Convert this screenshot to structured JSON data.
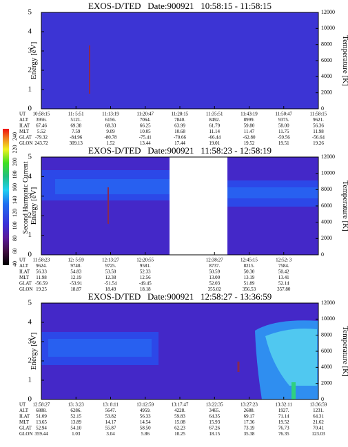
{
  "colorbar": {
    "label": "Second Harmonic Current",
    "ticks": [
      40,
      60,
      80,
      100,
      120,
      140,
      160,
      180,
      200,
      220,
      240
    ]
  },
  "panels": [
    {
      "title": "EXOS-D/TED   Date:900921   10:58:15 - 11:58:15",
      "y_label": "Energy [eV]",
      "y_ticks": [
        0,
        1,
        2,
        3,
        4,
        5
      ],
      "y2_label": "Temperature [K]",
      "y2_ticks": [
        0,
        2000,
        4000,
        6000,
        8000,
        10000,
        12000
      ],
      "ephemeris": {
        "row_labels": [
          "UT",
          "ALT",
          "ILAT",
          "MLT",
          "GLAT",
          "GLON"
        ],
        "columns": [
          [
            "10:58:15",
            "3956.",
            "67.46",
            "5.52",
            "-79.32",
            "243.72"
          ],
          [
            "11: 5:51",
            "5121.",
            "69.38",
            "7.59",
            "-84.96",
            "309.13"
          ],
          [
            "11:13:19",
            "6156.",
            "68.33",
            "9.09",
            "-80.78",
            "1.52"
          ],
          [
            "11:20:47",
            "7064.",
            "66.25",
            "10.05",
            "-75.41",
            "13.44"
          ],
          [
            "11:28:15",
            "7840.",
            "63.99",
            "10.68",
            "-70.66",
            "17.44"
          ],
          [
            "11:35:51",
            "8492.",
            "61.79",
            "11.14",
            "-66.44",
            "19.01"
          ],
          [
            "11:43:19",
            "8999.",
            "59.80",
            "11.47",
            "-62.80",
            "19.52"
          ],
          [
            "11:50:47",
            "9375.",
            "58.00",
            "11.75",
            "-59.56",
            "19.51"
          ],
          [
            "11:58:15",
            "9621.",
            "56.36",
            "11.98",
            "-56.64",
            "19.26"
          ]
        ]
      }
    },
    {
      "title": "EXOS-D/TED   Date:900921   11:58:23 - 12:58:19",
      "y_label": "Energy [eV]",
      "y_ticks": [
        0,
        1,
        2,
        3,
        4,
        5
      ],
      "y2_label": "Temperature [K]",
      "y2_ticks": [
        0,
        2000,
        4000,
        6000,
        8000,
        10000,
        12000
      ],
      "ephemeris": {
        "row_labels": [
          "UT",
          "ALT",
          "ILAT",
          "MLT",
          "GLAT",
          "GLON"
        ],
        "columns": [
          [
            "11:58:23",
            "9624.",
            "56.33",
            "11.98",
            "-56.59",
            "19.25"
          ],
          [
            "12: 5:59",
            "9740.",
            "54.83",
            "12.19",
            "-53.91",
            "18.87"
          ],
          [
            "12:13:27",
            "9725.",
            "53.50",
            "12.38",
            "-51.54",
            "18.49"
          ],
          [
            "12:20:55",
            "9581.",
            "52.33",
            "12.56",
            "-49.45",
            "18.18"
          ],
          null,
          [
            "12:38:27",
            "8737.",
            "50.59",
            "13.00",
            "52.03",
            "355.02"
          ],
          [
            "12:45:15",
            "8215.",
            "50.30",
            "13.19",
            "51.89",
            "356.53"
          ],
          [
            "12:52: 3",
            "7584.",
            "50.42",
            "13.41",
            "52.14",
            "357.80"
          ],
          null
        ]
      }
    },
    {
      "title": "EXOS-D/TED   Date:900921   12:58:27 - 13:36:59",
      "y_label": "Energy [eV]",
      "y_ticks": [
        0,
        1,
        2,
        3,
        4,
        5
      ],
      "y2_label": "Temperature [K]",
      "y2_ticks": [
        0,
        2000,
        4000,
        6000,
        8000,
        10000,
        12000
      ],
      "ephemeris": {
        "row_labels": [
          "UT",
          "ALT",
          "ILAT",
          "MLT",
          "GLAT",
          "GLON"
        ],
        "columns": [
          [
            "12:58:27",
            "6888.",
            "51.09",
            "13.65",
            "52.94",
            "359.44"
          ],
          [
            "13: 3:23",
            "6286.",
            "52.15",
            "13.89",
            "54.10",
            "1.03"
          ],
          [
            "13: 8:11",
            "5647.",
            "53.82",
            "14.17",
            "55.87",
            "3.04"
          ],
          [
            "13:12:59",
            "4959.",
            "56.33",
            "14.54",
            "58.50",
            "5.86"
          ],
          [
            "13:17:47",
            "4228.",
            "59.83",
            "15.08",
            "62.23",
            "10.25"
          ],
          [
            "13:22:35",
            "3465.",
            "64.35",
            "15.93",
            "67.26",
            "18.15"
          ],
          [
            "13:27:23",
            "2688.",
            "69.17",
            "17.36",
            "73.19",
            "35.38"
          ],
          [
            "13:32:11",
            "1927.",
            "71.14",
            "19.52",
            "76.73",
            "76.35"
          ],
          [
            "13:36:59",
            "1231.",
            "64.31",
            "21.62",
            "70.41",
            "123.03"
          ]
        ]
      }
    }
  ]
}
